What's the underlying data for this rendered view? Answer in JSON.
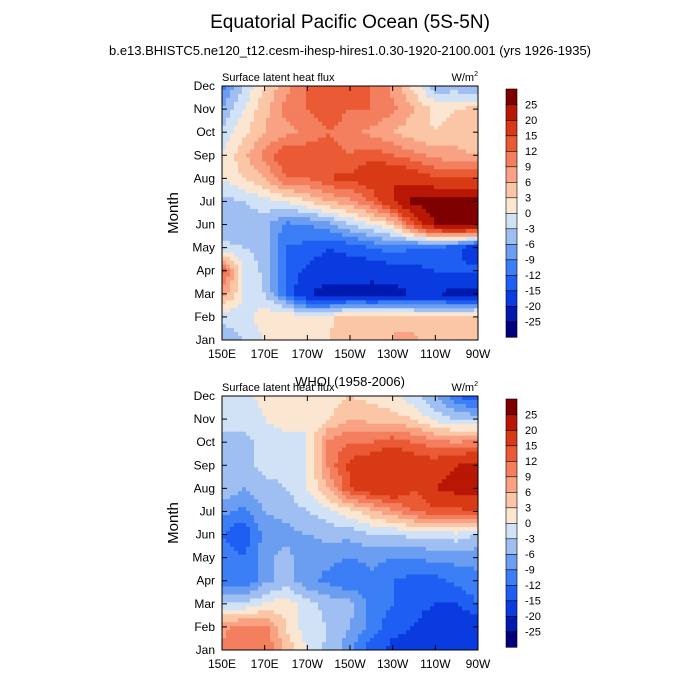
{
  "title": "Equatorial Pacific Ocean (5S-5N)",
  "subtitle": "b.e13.BHISTC5.ne120_t12.cesm-ihesp-hires1.0.30-1920-2100.001 (yrs 1926-1935)",
  "chart_data": [
    {
      "type": "heatmap",
      "panel_title": "",
      "left_string": "Surface latent heat flux",
      "units": "W/m",
      "units_superscript": "2",
      "ylabel": "Month",
      "xlabel": "",
      "x_ticks": [
        "150E",
        "170E",
        "170W",
        "150W",
        "130W",
        "110W",
        "90W"
      ],
      "x_range": [
        150,
        270
      ],
      "y_ticks": [
        "Jan",
        "Feb",
        "Mar",
        "Apr",
        "May",
        "Jun",
        "Jul",
        "Aug",
        "Sep",
        "Oct",
        "Nov",
        "Dec"
      ],
      "colorbar_labels": [
        "25",
        "20",
        "15",
        "12",
        "9",
        "6",
        "3",
        "0",
        "-3",
        "-6",
        "-9",
        "-12",
        "-15",
        "-20",
        "-25"
      ],
      "levels": [
        -25,
        -20,
        -15,
        -12,
        -9,
        -6,
        -3,
        0,
        3,
        6,
        9,
        12,
        15,
        20,
        25
      ],
      "longitudes": [
        150,
        160,
        170,
        180,
        190,
        200,
        210,
        220,
        230,
        240,
        250,
        260,
        270
      ],
      "values": [
        [
          -5,
          -3,
          0,
          2,
          0,
          3,
          5,
          6,
          6,
          7,
          3,
          4,
          5
        ],
        [
          -2,
          -2,
          2,
          3,
          0,
          2,
          6,
          5,
          6,
          4,
          3,
          4,
          5
        ],
        [
          8,
          0,
          -3,
          -12,
          -20,
          -22,
          -22,
          -22,
          -22,
          -20,
          -20,
          -22,
          -22
        ],
        [
          14,
          0,
          -4,
          -12,
          -16,
          -17,
          -17,
          -18,
          -17,
          -16,
          -15,
          -14,
          -14
        ],
        [
          -2,
          -3,
          -4,
          -12,
          -13,
          -15,
          -14,
          -12,
          -10,
          -12,
          -13,
          -14,
          -20
        ],
        [
          -5,
          -5,
          -5,
          -10,
          -9,
          -7,
          -3,
          0,
          3,
          15,
          25,
          27,
          27
        ],
        [
          -4,
          -3,
          -1,
          0,
          3,
          6,
          8,
          12,
          20,
          27,
          28,
          28,
          28
        ],
        [
          0,
          3,
          6,
          12,
          12,
          15,
          16,
          18,
          20,
          18,
          15,
          15,
          15
        ],
        [
          0,
          5,
          10,
          15,
          14,
          14,
          12,
          14,
          12,
          10,
          8,
          7,
          6
        ],
        [
          -2,
          2,
          6,
          8,
          10,
          12,
          10,
          8,
          6,
          4,
          3,
          4,
          3
        ],
        [
          -6,
          0,
          5,
          10,
          12,
          14,
          12,
          12,
          10,
          6,
          2,
          3,
          4
        ],
        [
          -10,
          -3,
          3,
          8,
          12,
          15,
          14,
          12,
          8,
          2,
          -5,
          -5,
          -6
        ]
      ]
    },
    {
      "type": "heatmap",
      "panel_title": "WHOI (1958-2006)",
      "left_string": "Surface latent heat flux",
      "units": "W/m",
      "units_superscript": "2",
      "ylabel": "Month",
      "xlabel": "",
      "x_ticks": [
        "150E",
        "170E",
        "170W",
        "150W",
        "130W",
        "110W",
        "90W"
      ],
      "x_range": [
        150,
        270
      ],
      "y_ticks": [
        "Jan",
        "Feb",
        "Mar",
        "Apr",
        "May",
        "Jun",
        "Jul",
        "Aug",
        "Sep",
        "Oct",
        "Nov",
        "Dec"
      ],
      "colorbar_labels": [
        "25",
        "20",
        "15",
        "12",
        "9",
        "6",
        "3",
        "0",
        "-3",
        "-6",
        "-9",
        "-12",
        "-15",
        "-20",
        "-25"
      ],
      "levels": [
        -25,
        -20,
        -15,
        -12,
        -9,
        -6,
        -3,
        0,
        3,
        6,
        9,
        12,
        15,
        20,
        25
      ],
      "longitudes": [
        150,
        160,
        170,
        180,
        190,
        200,
        210,
        220,
        230,
        240,
        250,
        260,
        270
      ],
      "values": [
        [
          10,
          12,
          12,
          5,
          0,
          -4,
          -8,
          -14,
          -16,
          -17,
          -18,
          -18,
          -17
        ],
        [
          8,
          10,
          10,
          3,
          -2,
          -3,
          -6,
          -10,
          -14,
          -15,
          -17,
          -18,
          -18
        ],
        [
          -3,
          -3,
          0,
          2,
          -2,
          -4,
          -5,
          -10,
          -12,
          -14,
          -15,
          -15,
          -12
        ],
        [
          -10,
          -12,
          -7,
          -5,
          -8,
          -10,
          -12,
          -10,
          -12,
          -13,
          -13,
          -11,
          -10
        ],
        [
          -10,
          -12,
          -7,
          -5,
          -8,
          -8,
          -9,
          -8,
          -9,
          -9,
          -8,
          -8,
          -8
        ],
        [
          -12,
          -15,
          -8,
          -7,
          -6,
          -5,
          -5,
          -3,
          -3,
          -2,
          -2,
          -1,
          -3
        ],
        [
          -8,
          -10,
          -6,
          -5,
          -3,
          -1,
          2,
          5,
          8,
          12,
          14,
          14,
          15
        ],
        [
          -3,
          -6,
          -4,
          -3,
          0,
          6,
          15,
          18,
          20,
          15,
          20,
          22,
          23
        ],
        [
          -3,
          -4,
          -2,
          -2,
          0,
          10,
          16,
          18,
          20,
          18,
          17,
          20,
          22
        ],
        [
          -3,
          -4,
          -2,
          -2,
          0,
          10,
          12,
          12,
          14,
          12,
          10,
          9,
          10
        ],
        [
          -3,
          -2,
          0,
          2,
          0,
          3,
          6,
          5,
          4,
          3,
          -1,
          -3,
          -4
        ],
        [
          -2,
          -1,
          1,
          2,
          0,
          1,
          3,
          2,
          1,
          -2,
          -6,
          -12,
          -15
        ]
      ]
    }
  ],
  "colors": [
    "#00007f",
    "#001ab0",
    "#0a3be0",
    "#1f5ef2",
    "#3b7ef5",
    "#6b9df0",
    "#9fbef2",
    "#d2e2f6",
    "#fbe6d2",
    "#fbc6a6",
    "#f8a283",
    "#f37f5e",
    "#e95a35",
    "#d93a16",
    "#b81706",
    "#7e0000"
  ]
}
